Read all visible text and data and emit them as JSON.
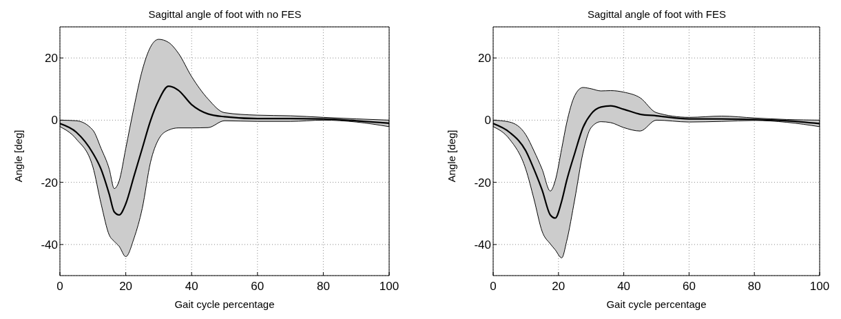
{
  "chart_data": [
    {
      "type": "line",
      "title": "Sagittal angle of foot with no FES",
      "xlabel": "Gait cycle percentage",
      "ylabel": "Angle [deg]",
      "xlim": [
        0,
        100
      ],
      "xticks": [
        0,
        20,
        40,
        60,
        80,
        100
      ],
      "ylim": [
        -50,
        30
      ],
      "yticks": [
        -40,
        -20,
        0,
        20
      ],
      "grid": true,
      "legend": false,
      "x": [
        0,
        5,
        10,
        12.5,
        15,
        16.5,
        18,
        20,
        22.5,
        25,
        27.5,
        30,
        33,
        36,
        40,
        45,
        50,
        60,
        70,
        80,
        90,
        100
      ],
      "series": [
        {
          "color": "#000000",
          "values": [
            -1.1,
            -3.9,
            -10.6,
            -15.8,
            -23.9,
            -29.5,
            -30.5,
            -26.9,
            -18,
            -9.1,
            -0.2,
            6.4,
            10.9,
            9.6,
            5,
            2,
            1.1,
            0.5,
            0.5,
            0.4,
            -0.2,
            -1
          ],
          "upper": [
            0,
            -0.2,
            -3.2,
            -9.1,
            -15.8,
            -22,
            -19.5,
            -9.1,
            4.2,
            16,
            23.5,
            26,
            25,
            21.5,
            14,
            6.8,
            2.4,
            1.6,
            1.4,
            0.9,
            0.4,
            0
          ],
          "lower": [
            -2.1,
            -6.1,
            -15,
            -26.9,
            -37,
            -39,
            -40.6,
            -43.9,
            -38,
            -28.4,
            -13.6,
            -6.1,
            -3.2,
            -2.5,
            -2.5,
            -2.4,
            -0.2,
            -0.4,
            -0.4,
            0,
            -0.6,
            -2.1
          ]
        }
      ]
    },
    {
      "type": "line",
      "title": "Sagittal angle of foot with FES",
      "xlabel": "Gait cycle percentage",
      "ylabel": "Angle [deg]",
      "xlim": [
        0,
        100
      ],
      "xticks": [
        0,
        20,
        40,
        60,
        80,
        100
      ],
      "ylim": [
        -50,
        30
      ],
      "yticks": [
        -40,
        -20,
        0,
        20
      ],
      "grid": true,
      "legend": false,
      "x": [
        0,
        5,
        10,
        12.5,
        15,
        17.5,
        19,
        21,
        22.5,
        25,
        27.5,
        30,
        33,
        36,
        40,
        45,
        50,
        60,
        70,
        80,
        90,
        100
      ],
      "series": [
        {
          "color": "#000000",
          "values": [
            -1.1,
            -3.9,
            -9.9,
            -15.8,
            -22.5,
            -30.5,
            -31.5,
            -26,
            -19.5,
            -10.6,
            -2.4,
            2,
            4.2,
            4.6,
            3.5,
            1.9,
            1.4,
            0.4,
            0.4,
            0.2,
            -0.2,
            -1.1
          ],
          "upper": [
            0,
            -0.6,
            -4.7,
            -9.9,
            -15.8,
            -22.8,
            -19.5,
            -9.1,
            -1,
            7.9,
            10.5,
            10.1,
            9.4,
            9.5,
            9,
            7.2,
            2.4,
            0.9,
            1.3,
            0.7,
            0.2,
            0
          ],
          "lower": [
            -2.1,
            -6.1,
            -15.8,
            -25.4,
            -35.8,
            -39.8,
            -41.7,
            -44.3,
            -39,
            -25.4,
            -10.6,
            -2.4,
            -0.5,
            -0.8,
            -2.4,
            -3.5,
            0,
            -0.6,
            -0.4,
            -0.1,
            -0.7,
            -2.1
          ]
        }
      ]
    }
  ]
}
